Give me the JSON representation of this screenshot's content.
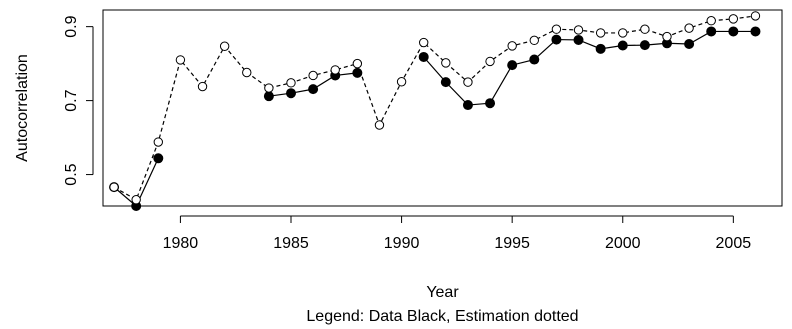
{
  "chart_data": {
    "type": "line",
    "xlabel": "Year",
    "ylabel": "Autocorrelation",
    "legend_caption": "Legend: Data Black, Estimation dotted",
    "xlim": [
      1976.5,
      2007.2
    ],
    "ylim": [
      0.415,
      0.945
    ],
    "x_ticks": [
      1980,
      1985,
      1990,
      1995,
      2000,
      2005
    ],
    "y_ticks": [
      0.5,
      0.7,
      0.9
    ],
    "x_tick_labels": [
      "1980",
      "1985",
      "1990",
      "1995",
      "2000",
      "2005"
    ],
    "y_tick_labels": [
      "0.5",
      "0.7",
      "0.9"
    ],
    "grid": false,
    "series": [
      {
        "color": "#000000",
        "line": "solid",
        "marker": "filled-circle",
        "segments": [
          {
            "x": [
              1977,
              1978,
              1979
            ],
            "y": [
              0.466,
              0.415,
              0.544
            ]
          },
          {
            "x": [
              1984,
              1985,
              1986,
              1987,
              1988
            ],
            "y": [
              0.712,
              0.72,
              0.731,
              0.768,
              0.775
            ]
          },
          {
            "x": [
              1991,
              1992,
              1993,
              1994,
              1995,
              1996,
              1997,
              1998,
              1999,
              2000,
              2001,
              2002,
              2003,
              2004,
              2005,
              2006
            ],
            "y": [
              0.818,
              0.75,
              0.688,
              0.693,
              0.796,
              0.811,
              0.865,
              0.864,
              0.84,
              0.849,
              0.85,
              0.855,
              0.853,
              0.887,
              0.887,
              0.887
            ]
          }
        ]
      },
      {
        "color": "#000000",
        "line": "dashed",
        "marker": "open-circle",
        "segments": [
          {
            "x": [
              1977,
              1978,
              1979,
              1980,
              1981,
              1982,
              1983,
              1984,
              1985,
              1986,
              1987,
              1988,
              1989,
              1990,
              1991,
              1992,
              1993,
              1994,
              1995,
              1996,
              1997,
              1998,
              1999,
              2000,
              2001,
              2002,
              2003,
              2004,
              2005,
              2006
            ],
            "y": [
              0.466,
              0.432,
              0.588,
              0.81,
              0.738,
              0.847,
              0.776,
              0.734,
              0.748,
              0.768,
              0.783,
              0.8,
              0.634,
              0.751,
              0.857,
              0.802,
              0.75,
              0.806,
              0.848,
              0.863,
              0.893,
              0.891,
              0.883,
              0.883,
              0.893,
              0.873,
              0.896,
              0.916,
              0.921,
              0.929
            ]
          }
        ]
      }
    ]
  }
}
